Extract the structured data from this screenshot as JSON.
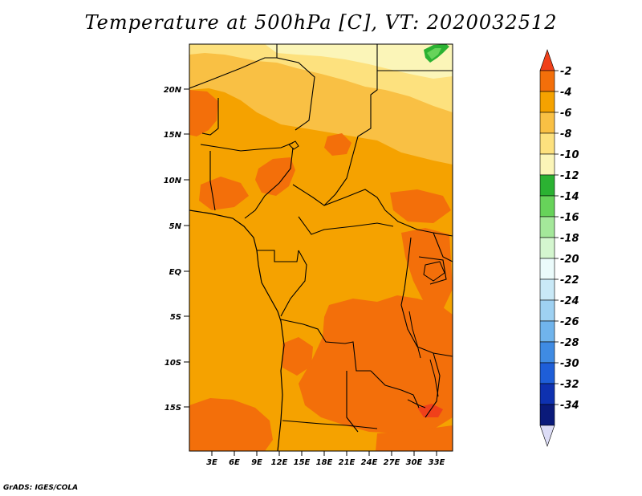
{
  "title": "Temperature at 500hPa [C], VT: 2020032512",
  "credit": "GrADS: IGES/COLA",
  "map": {
    "lat_labels": [
      "20N",
      "15N",
      "10N",
      "5N",
      "EQ",
      "5S",
      "10S",
      "15S"
    ],
    "lon_labels": [
      "3E",
      "6E",
      "9E",
      "12E",
      "15E",
      "18E",
      "21E",
      "24E",
      "27E",
      "30E",
      "33E"
    ],
    "base_color": "#f5a200"
  },
  "colorbar": {
    "labels": [
      "-2",
      "-4",
      "-6",
      "-8",
      "-10",
      "-12",
      "-14",
      "-16",
      "-18",
      "-20",
      "-22",
      "-24",
      "-26",
      "-28",
      "-30",
      "-32",
      "-34"
    ],
    "colors": [
      "#f0401a",
      "#f36f0a",
      "#f5a200",
      "#f9c044",
      "#fde17e",
      "#fbf5b8",
      "#2bb232",
      "#67d35a",
      "#a4e89a",
      "#d4f6cf",
      "#ebfbfb",
      "#c9e9f7",
      "#9ed1f2",
      "#70b4ec",
      "#3f8be3",
      "#1e5ed8",
      "#0e31b0",
      "#0a1a7a",
      "#dcdcf6"
    ]
  }
}
